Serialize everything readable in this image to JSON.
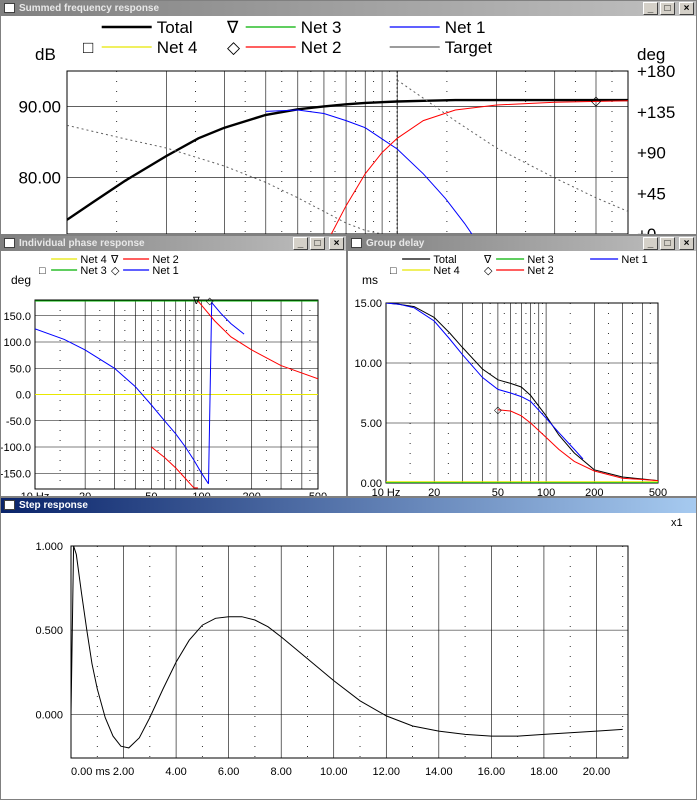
{
  "windows": {
    "summed": {
      "title": "Summed frequency response"
    },
    "phase": {
      "title": "Individual phase response"
    },
    "group": {
      "title": "Group delay"
    },
    "step": {
      "title": "Step response"
    }
  },
  "title_buttons": {
    "minimize": "_",
    "maximize": "□",
    "close": "×"
  },
  "colors": {
    "total": "#000000",
    "net1": "#0000ff",
    "net2": "#ff0000",
    "net3": "#00b000",
    "net4": "#e8e800",
    "target": "#606060"
  },
  "chart_data": [
    {
      "id": "summed",
      "type": "line",
      "ylabel_left": "dB",
      "ylabel_right": "deg",
      "xscale": "log",
      "xlim": [
        10,
        500
      ],
      "ylim": [
        72,
        95
      ],
      "ylim_right": [
        0,
        180
      ],
      "ticks_left": [
        "90.00",
        "80.00"
      ],
      "ticks_left_values": [
        90,
        80
      ],
      "ticks_right": [
        "+180",
        "+135",
        "+90",
        "+45",
        "+0"
      ],
      "ticks_right_values": [
        180,
        135,
        90,
        45,
        0
      ],
      "legend": [
        {
          "label": "Total",
          "symbol": "",
          "color": "#000000"
        },
        {
          "label": "Net 3",
          "symbol": "∇",
          "color": "#00b000"
        },
        {
          "label": "Net 1",
          "symbol": "",
          "color": "#0000ff"
        },
        {
          "label": "Net 4",
          "symbol": "□",
          "color": "#e8e800"
        },
        {
          "label": "Net 2",
          "symbol": "◇",
          "color": "#ff0000"
        },
        {
          "label": "Target",
          "symbol": "",
          "color": "#606060"
        }
      ],
      "vline_x": 100,
      "series": [
        {
          "name": "Total",
          "axis": "left",
          "x": [
            10,
            12,
            15,
            20,
            25,
            30,
            40,
            50,
            60,
            70,
            80,
            100,
            120,
            150,
            200,
            300,
            500
          ],
          "y": [
            74.0,
            76.5,
            79.5,
            83.0,
            85.5,
            87.0,
            88.8,
            89.6,
            90.0,
            90.3,
            90.5,
            90.7,
            90.8,
            90.9,
            90.9,
            90.9,
            90.9
          ]
        },
        {
          "name": "Net 1",
          "axis": "left",
          "x": [
            40,
            50,
            60,
            70,
            80,
            100,
            120,
            140,
            160,
            180
          ],
          "y": [
            89.3,
            89.5,
            89.0,
            88.0,
            87.0,
            84.0,
            80.5,
            77.0,
            73.5,
            70.0
          ]
        },
        {
          "name": "Net 2",
          "axis": "left",
          "x": [
            60,
            70,
            80,
            90,
            100,
            120,
            150,
            200,
            300,
            500
          ],
          "y": [
            70.0,
            76.0,
            80.5,
            83.5,
            85.5,
            88.0,
            89.5,
            90.2,
            90.6,
            90.8
          ]
        },
        {
          "name": "Target",
          "axis": "right",
          "dashed": true,
          "x": [
            10,
            15,
            20,
            30,
            40,
            50,
            60,
            70,
            80,
            90
          ],
          "y": [
            120,
            105,
            95,
            75,
            57,
            40,
            25,
            12,
            4,
            0
          ]
        },
        {
          "name": "Target",
          "axis": "right",
          "dashed": true,
          "x": [
            100,
            120,
            150,
            200,
            300,
            400,
            500
          ],
          "y": [
            170,
            150,
            125,
            95,
            62,
            40,
            25
          ]
        }
      ],
      "markers": [
        {
          "symbol": "◇",
          "x": 400,
          "y": 90.9,
          "color": "#000000"
        }
      ]
    },
    {
      "id": "phase",
      "type": "line",
      "ylabel": "deg",
      "xscale": "log",
      "xlim": [
        10,
        500
      ],
      "ylim": [
        -180,
        180
      ],
      "ticks_y": [
        "150.0",
        "100.0",
        "50.0",
        "0.0",
        "-50.0",
        "-100.0",
        "-150.0"
      ],
      "ticks_y_values": [
        150,
        100,
        50,
        0,
        -50,
        -100,
        -150
      ],
      "ticks_x": [
        "10 Hz",
        "20",
        "50",
        "100",
        "200",
        "500"
      ],
      "ticks_x_values": [
        10,
        20,
        50,
        100,
        200,
        500
      ],
      "legend": [
        {
          "label": "Net 4",
          "symbol": "",
          "color": "#e8e800"
        },
        {
          "label": "Net 2",
          "symbol": "∇",
          "color": "#ff0000"
        },
        {
          "label": "Net 3",
          "symbol": "□",
          "color": "#00b000"
        },
        {
          "label": "Net 1",
          "symbol": "◇",
          "color": "#0000ff"
        }
      ],
      "series": [
        {
          "name": "Net 4",
          "x": [
            10,
            500
          ],
          "y": [
            0,
            0
          ]
        },
        {
          "name": "Net 3",
          "x": [
            10,
            500
          ],
          "y": [
            178,
            178
          ]
        },
        {
          "name": "Net 1",
          "x": [
            10,
            15,
            20,
            30,
            40,
            50,
            60,
            70,
            80,
            90,
            100,
            110
          ],
          "y": [
            125,
            105,
            85,
            50,
            15,
            -20,
            -50,
            -75,
            -100,
            -125,
            -150,
            -170
          ]
        },
        {
          "name": "Net 1",
          "x": [
            110,
            115,
            130,
            150,
            180
          ],
          "y": [
            -170,
            175,
            155,
            135,
            115
          ]
        },
        {
          "name": "Net 2",
          "x": [
            50,
            60,
            70,
            80,
            90,
            95
          ],
          "y": [
            -100,
            -120,
            -140,
            -160,
            -178,
            -178
          ]
        },
        {
          "name": "Net 2",
          "x": [
            95,
            100,
            120,
            150,
            200,
            300,
            500
          ],
          "y": [
            178,
            170,
            140,
            110,
            85,
            55,
            30
          ]
        }
      ],
      "markers": [
        {
          "symbol": "∇",
          "x": 93,
          "y": 178,
          "color": "#000000"
        },
        {
          "symbol": "◇",
          "x": 112,
          "y": 178,
          "color": "#000000"
        }
      ]
    },
    {
      "id": "group",
      "type": "line",
      "ylabel": "ms",
      "xscale": "log",
      "xlim": [
        10,
        500
      ],
      "ylim": [
        0,
        15
      ],
      "ticks_y": [
        "15.00",
        "10.00",
        "5.00",
        "0.00"
      ],
      "ticks_y_values": [
        15,
        10,
        5,
        0
      ],
      "ticks_x": [
        "10 Hz",
        "20",
        "50",
        "100",
        "200",
        "500"
      ],
      "ticks_x_values": [
        10,
        20,
        50,
        100,
        200,
        500
      ],
      "legend": [
        {
          "label": "Total",
          "symbol": "",
          "color": "#000000"
        },
        {
          "label": "Net 3",
          "symbol": "∇",
          "color": "#00b000"
        },
        {
          "label": "Net 1",
          "symbol": "",
          "color": "#0000ff"
        },
        {
          "label": "Net 4",
          "symbol": "□",
          "color": "#e8e800"
        },
        {
          "label": "Net 2",
          "symbol": "◇",
          "color": "#ff0000"
        }
      ],
      "series": [
        {
          "name": "Net 4",
          "x": [
            10,
            500
          ],
          "y": [
            0.1,
            0.1
          ]
        },
        {
          "name": "Net 3",
          "x": [
            10,
            500
          ],
          "y": [
            0.02,
            0.02
          ]
        },
        {
          "name": "Total",
          "x": [
            10,
            12,
            15,
            20,
            25,
            30,
            40,
            50,
            60,
            70,
            80,
            100,
            120,
            150,
            200,
            300,
            500
          ],
          "y": [
            15.0,
            14.9,
            14.7,
            13.8,
            12.5,
            11.3,
            9.5,
            8.6,
            8.3,
            8.0,
            7.3,
            5.6,
            4.0,
            2.5,
            1.1,
            0.5,
            0.2
          ]
        },
        {
          "name": "Net 1",
          "x": [
            10,
            12,
            15,
            20,
            25,
            30,
            40,
            50,
            60,
            70,
            80,
            100,
            120,
            150,
            170
          ],
          "y": [
            15.0,
            14.9,
            14.6,
            13.5,
            12.0,
            10.7,
            8.8,
            7.8,
            7.5,
            7.2,
            6.8,
            5.4,
            4.2,
            2.8,
            2.0
          ]
        },
        {
          "name": "Net 2",
          "x": [
            50,
            60,
            70,
            80,
            100,
            120,
            150,
            200,
            300,
            500
          ],
          "y": [
            6.1,
            6.0,
            5.6,
            5.0,
            3.8,
            2.8,
            1.8,
            1.0,
            0.4,
            0.2
          ]
        }
      ],
      "markers": [
        {
          "symbol": "◇",
          "x": 50,
          "y": 6.1,
          "color": "#000000"
        }
      ]
    },
    {
      "id": "step",
      "type": "line",
      "scale_label": "x1",
      "xlim": [
        0,
        21.2
      ],
      "ylim": [
        -0.26,
        1.0
      ],
      "ticks_y": [
        "1.000",
        "0.500",
        "0.000"
      ],
      "ticks_y_values": [
        1,
        0.5,
        0
      ],
      "ticks_x": [
        "0.00 ms",
        "2.00",
        "4.00",
        "6.00",
        "8.00",
        "10.00",
        "12.00",
        "14.00",
        "16.00",
        "18.00",
        "20.00"
      ],
      "ticks_x_values": [
        0,
        2,
        4,
        6,
        8,
        10,
        12,
        14,
        16,
        18,
        20
      ],
      "series": [
        {
          "name": "Step",
          "x": [
            0,
            0.1,
            0.2,
            0.4,
            0.6,
            0.8,
            1.0,
            1.3,
            1.6,
            1.9,
            2.2,
            2.6,
            3.0,
            3.5,
            4.0,
            4.5,
            5.0,
            5.5,
            6.0,
            6.5,
            7.0,
            7.5,
            8.0,
            9.0,
            10.0,
            11.0,
            12.0,
            13.0,
            14.0,
            15.0,
            16.0,
            17.0,
            18.0,
            19.0,
            20.0,
            21.0
          ],
          "y": [
            0.0,
            1.0,
            0.95,
            0.72,
            0.5,
            0.3,
            0.15,
            -0.02,
            -0.13,
            -0.19,
            -0.2,
            -0.14,
            -0.02,
            0.15,
            0.31,
            0.44,
            0.53,
            0.57,
            0.58,
            0.58,
            0.56,
            0.52,
            0.46,
            0.33,
            0.2,
            0.08,
            -0.01,
            -0.07,
            -0.1,
            -0.12,
            -0.13,
            -0.13,
            -0.12,
            -0.11,
            -0.1,
            -0.09
          ]
        }
      ]
    }
  ]
}
